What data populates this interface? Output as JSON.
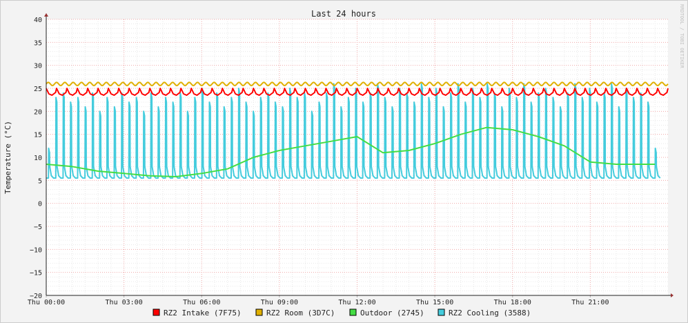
{
  "chart_data": {
    "type": "line",
    "title": "Last 24 hours",
    "ylabel": "Temperature (°C)",
    "watermark": "RRDTOOL / TOBI OETIKER",
    "ylim": [
      -20,
      40
    ],
    "yticks": [
      40,
      35,
      30,
      25,
      20,
      15,
      10,
      5,
      0,
      -5,
      -10,
      -15,
      -20
    ],
    "xlim": [
      0,
      24
    ],
    "xticks": [
      {
        "hour": 0,
        "label": "Thu 00:00"
      },
      {
        "hour": 3,
        "label": "Thu 03:00"
      },
      {
        "hour": 6,
        "label": "Thu 06:00"
      },
      {
        "hour": 9,
        "label": "Thu 09:00"
      },
      {
        "hour": 12,
        "label": "Thu 12:00"
      },
      {
        "hour": 15,
        "label": "Thu 15:00"
      },
      {
        "hour": 18,
        "label": "Thu 18:00"
      },
      {
        "hour": 21,
        "label": "Thu 21:00"
      }
    ],
    "grid": true,
    "legend_position": "bottom",
    "series": [
      {
        "name": "RZ2 Intake (7F75)",
        "color": "#ff0000",
        "style": "sawtooth",
        "x": [
          0,
          24
        ],
        "low": 23.5,
        "high": 25,
        "cycles": 60
      },
      {
        "name": "RZ2 Room (3D7C)",
        "color": "#e0b000",
        "style": "wave",
        "x": [
          0,
          24
        ],
        "low": 25.6,
        "high": 26.3,
        "cycles": 75
      },
      {
        "name": "Outdoor (2745)",
        "color": "#44dd44",
        "style": "line",
        "x": [
          0,
          1,
          2,
          3,
          4,
          5,
          6,
          7,
          8,
          9,
          10,
          11,
          12,
          13,
          14,
          15,
          16,
          17,
          18,
          19,
          20,
          21,
          22,
          23,
          23.5
        ],
        "values": [
          8.5,
          8,
          7,
          6.5,
          6,
          5.8,
          6.5,
          7.5,
          10,
          11.5,
          12.5,
          13.5,
          14.5,
          11,
          11.5,
          13,
          15,
          16.5,
          16,
          14.5,
          12.5,
          9,
          8.5,
          8.5,
          8.5
        ]
      },
      {
        "name": "RZ2 Cooling (3588)",
        "color": "#44ccdd",
        "style": "pulses",
        "x": [
          0,
          23.7
        ],
        "base": 5.5,
        "peaks": [
          12,
          23,
          24,
          22,
          23,
          21,
          24,
          20,
          23,
          21,
          24,
          22,
          23,
          20,
          24,
          21,
          23,
          22,
          24,
          20,
          23,
          25,
          22,
          24,
          21,
          23,
          25,
          22,
          20,
          23,
          24,
          22,
          21,
          25,
          23,
          24,
          20,
          22,
          24,
          26,
          21,
          23,
          25,
          22,
          24,
          26,
          23,
          21,
          25,
          24,
          22,
          26,
          23,
          25,
          21,
          24,
          26,
          22,
          25,
          23,
          26,
          24,
          21,
          25,
          23,
          26,
          22,
          24,
          25,
          23,
          21,
          24,
          26,
          23,
          25,
          22,
          24,
          26,
          21,
          25,
          23,
          24,
          22,
          12
        ]
      }
    ]
  }
}
